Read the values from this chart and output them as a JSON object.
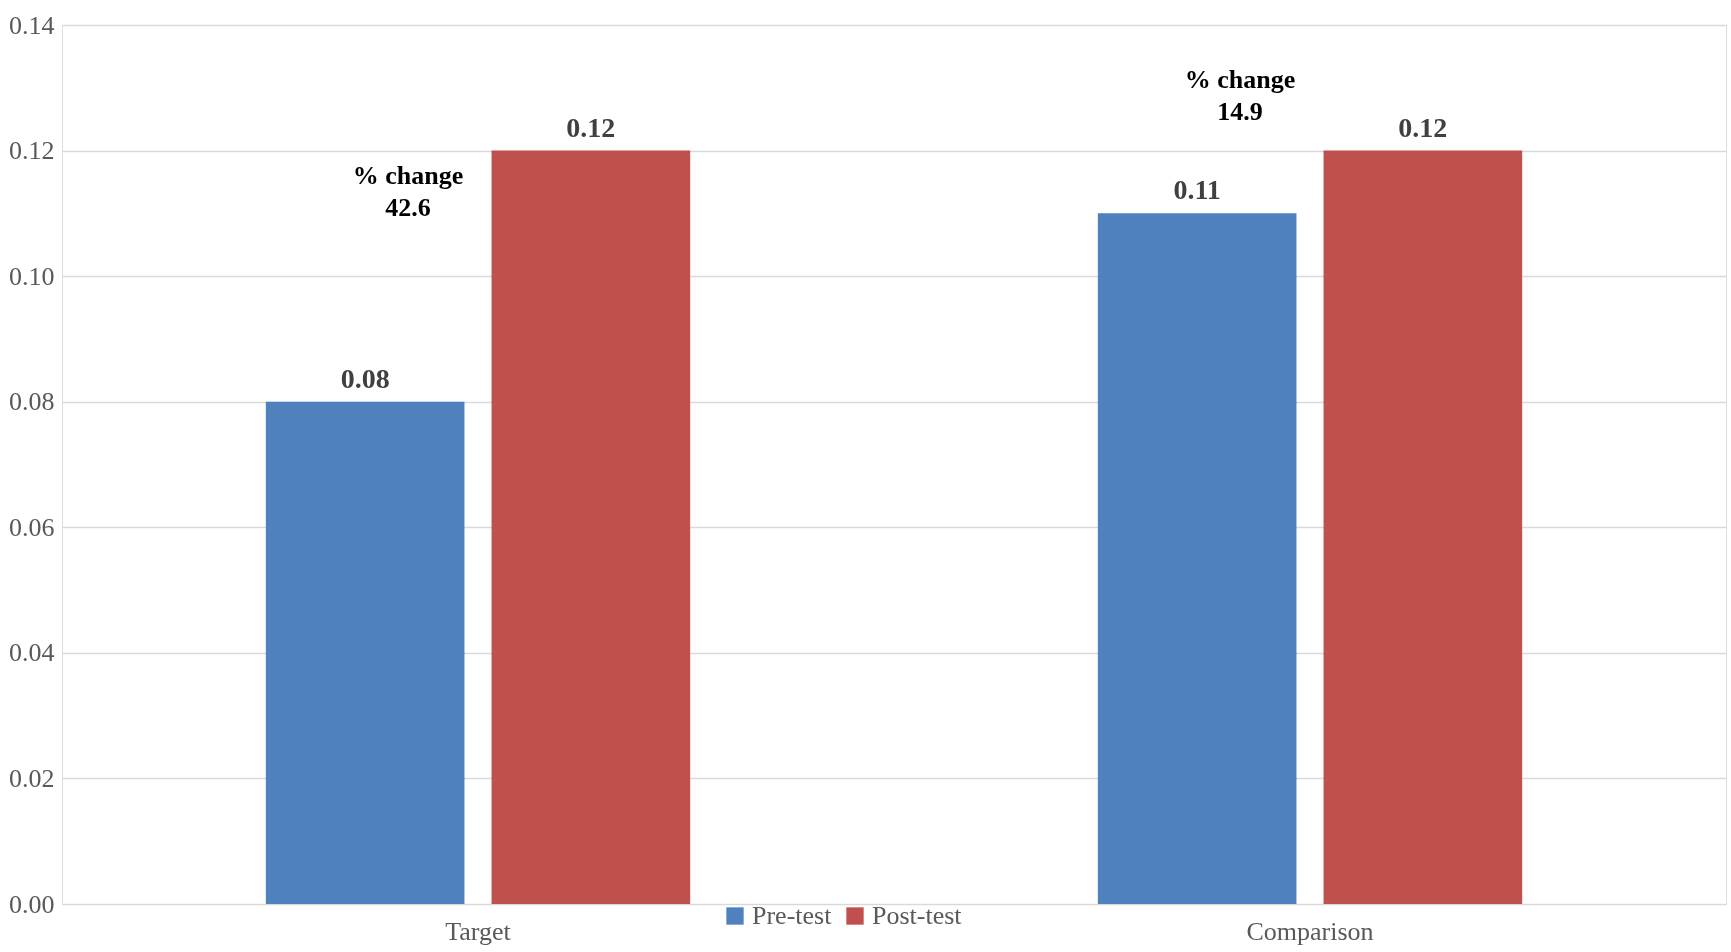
{
  "chart_data": {
    "type": "bar",
    "categories": [
      "Target",
      "Comparison"
    ],
    "series": [
      {
        "name": "Pre-test",
        "color": "#4f81bd",
        "values": [
          0.08,
          0.11
        ]
      },
      {
        "name": "Post-test",
        "color": "#c0504d",
        "values": [
          0.12,
          0.12
        ]
      }
    ],
    "ylim": [
      0,
      0.14
    ],
    "yticks": [
      {
        "value": 0,
        "label": "0.00"
      },
      {
        "value": 0.02,
        "label": "0.02"
      },
      {
        "value": 0.04,
        "label": "0.04"
      },
      {
        "value": 0.06,
        "label": "0.06"
      },
      {
        "value": 0.08,
        "label": "0.08"
      },
      {
        "value": 0.1,
        "label": "0.10"
      },
      {
        "value": 0.12,
        "label": "0.12"
      },
      {
        "value": 0.14,
        "label": "0.14"
      }
    ],
    "grid": "y",
    "legend": "bottom",
    "data_labels": true,
    "annotations": [
      "% change\n42.6",
      "% change\n14.9"
    ]
  }
}
